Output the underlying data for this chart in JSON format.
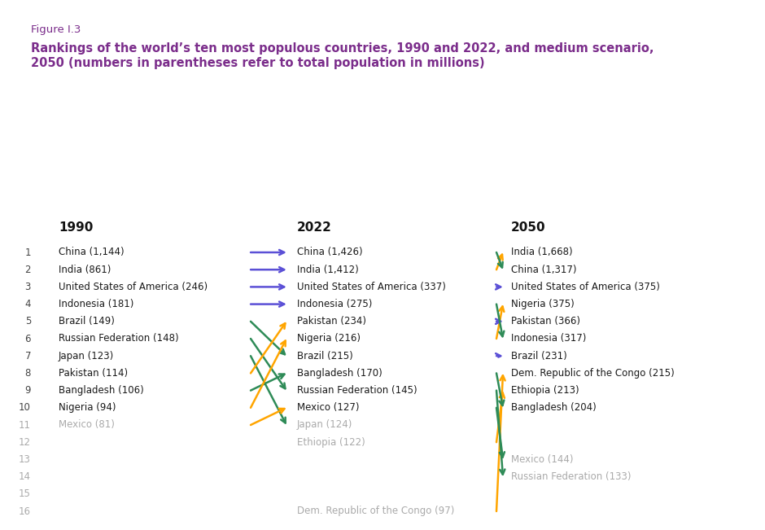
{
  "figure_label": "Figure I.3",
  "title_line1": "Rankings of the world’s ten most populous countries, 1990 and 2022, and medium scenario,",
  "title_line2": "2050 (numbers in parentheses refer to total population in millions)",
  "title_color": "#7B2D8B",
  "figure_label_color": "#7B2D8B",
  "background_color": "#ffffff",
  "col_headers": [
    "1990",
    "2022",
    "2050"
  ],
  "col1_entries": [
    [
      1,
      "China (1,144)",
      true
    ],
    [
      2,
      "India (861)",
      true
    ],
    [
      3,
      "United States of America (246)",
      true
    ],
    [
      4,
      "Indonesia (181)",
      true
    ],
    [
      5,
      "Brazil (149)",
      true
    ],
    [
      6,
      "Russian Federation (148)",
      true
    ],
    [
      7,
      "Japan (123)",
      true
    ],
    [
      8,
      "Pakistan (114)",
      true
    ],
    [
      9,
      "Bangladesh (106)",
      true
    ],
    [
      10,
      "Nigeria (94)",
      true
    ],
    [
      11,
      "Mexico (81)",
      false
    ]
  ],
  "col2_entries": [
    [
      1,
      "China (1,426)",
      true
    ],
    [
      2,
      "India (1,412)",
      true
    ],
    [
      3,
      "United States of America (337)",
      true
    ],
    [
      4,
      "Indonesia (275)",
      true
    ],
    [
      5,
      "Pakistan (234)",
      true
    ],
    [
      6,
      "Nigeria (216)",
      true
    ],
    [
      7,
      "Brazil (215)",
      true
    ],
    [
      8,
      "Bangladesh (170)",
      true
    ],
    [
      9,
      "Russian Federation (145)",
      true
    ],
    [
      10,
      "Mexico (127)",
      true
    ],
    [
      11,
      "Japan (124)",
      false
    ],
    [
      12,
      "Ethiopia (122)",
      false
    ],
    [
      16,
      "Dem. Republic of the Congo (97)",
      false
    ]
  ],
  "col3_entries": [
    [
      1,
      "India (1,668)",
      true
    ],
    [
      2,
      "China (1,317)",
      true
    ],
    [
      3,
      "United States of America (375)",
      true
    ],
    [
      4,
      "Nigeria (375)",
      true
    ],
    [
      5,
      "Pakistan (366)",
      true
    ],
    [
      6,
      "Indonesia (317)",
      true
    ],
    [
      7,
      "Brazil (231)",
      true
    ],
    [
      8,
      "Dem. Republic of the Congo (215)",
      true
    ],
    [
      9,
      "Ethiopia (213)",
      true
    ],
    [
      10,
      "Bangladesh (204)",
      true
    ],
    [
      13,
      "Mexico (144)",
      false
    ],
    [
      14,
      "Russian Federation (133)",
      false
    ]
  ],
  "arrows_1990_2022": [
    {
      "from_rank": 1,
      "to_rank": 1,
      "color": "#5B50D6",
      "style": "solid"
    },
    {
      "from_rank": 2,
      "to_rank": 2,
      "color": "#5B50D6",
      "style": "solid"
    },
    {
      "from_rank": 3,
      "to_rank": 3,
      "color": "#5B50D6",
      "style": "solid"
    },
    {
      "from_rank": 4,
      "to_rank": 4,
      "color": "#5B50D6",
      "style": "solid"
    },
    {
      "from_rank": 5,
      "to_rank": 7,
      "color": "#2E8B57",
      "style": "solid"
    },
    {
      "from_rank": 6,
      "to_rank": 9,
      "color": "#2E8B57",
      "style": "solid"
    },
    {
      "from_rank": 7,
      "to_rank": 11,
      "color": "#2E8B57",
      "style": "solid"
    },
    {
      "from_rank": 8,
      "to_rank": 5,
      "color": "#FFA500",
      "style": "solid"
    },
    {
      "from_rank": 9,
      "to_rank": 8,
      "color": "#2E8B57",
      "style": "solid"
    },
    {
      "from_rank": 10,
      "to_rank": 6,
      "color": "#FFA500",
      "style": "solid"
    },
    {
      "from_rank": 11,
      "to_rank": 10,
      "color": "#FFA500",
      "style": "solid"
    }
  ],
  "arrows_2022_2050": [
    {
      "from_rank": 2,
      "to_rank": 1,
      "color": "#FFA500",
      "style": "solid"
    },
    {
      "from_rank": 1,
      "to_rank": 2,
      "color": "#2E8B57",
      "style": "solid"
    },
    {
      "from_rank": 3,
      "to_rank": 3,
      "color": "#5B50D6",
      "style": "solid"
    },
    {
      "from_rank": 6,
      "to_rank": 4,
      "color": "#FFA500",
      "style": "solid"
    },
    {
      "from_rank": 5,
      "to_rank": 5,
      "color": "#5B50D6",
      "style": "solid"
    },
    {
      "from_rank": 4,
      "to_rank": 6,
      "color": "#2E8B57",
      "style": "solid"
    },
    {
      "from_rank": 7,
      "to_rank": 7,
      "color": "#5B50D6",
      "style": "dashed"
    },
    {
      "from_rank": 16,
      "to_rank": 8,
      "color": "#FFA500",
      "style": "solid"
    },
    {
      "from_rank": 12,
      "to_rank": 9,
      "color": "#FFA500",
      "style": "solid"
    },
    {
      "from_rank": 8,
      "to_rank": 10,
      "color": "#2E8B57",
      "style": "solid"
    },
    {
      "from_rank": 9,
      "to_rank": 14,
      "color": "#2E8B57",
      "style": "solid"
    },
    {
      "from_rank": 10,
      "to_rank": 13,
      "color": "#2E8B57",
      "style": "solid"
    }
  ],
  "active_text_color": "#1a1a1a",
  "inactive_text_color": "#aaaaaa",
  "rank_color_active": "#444444",
  "rank_color_inactive": "#aaaaaa"
}
